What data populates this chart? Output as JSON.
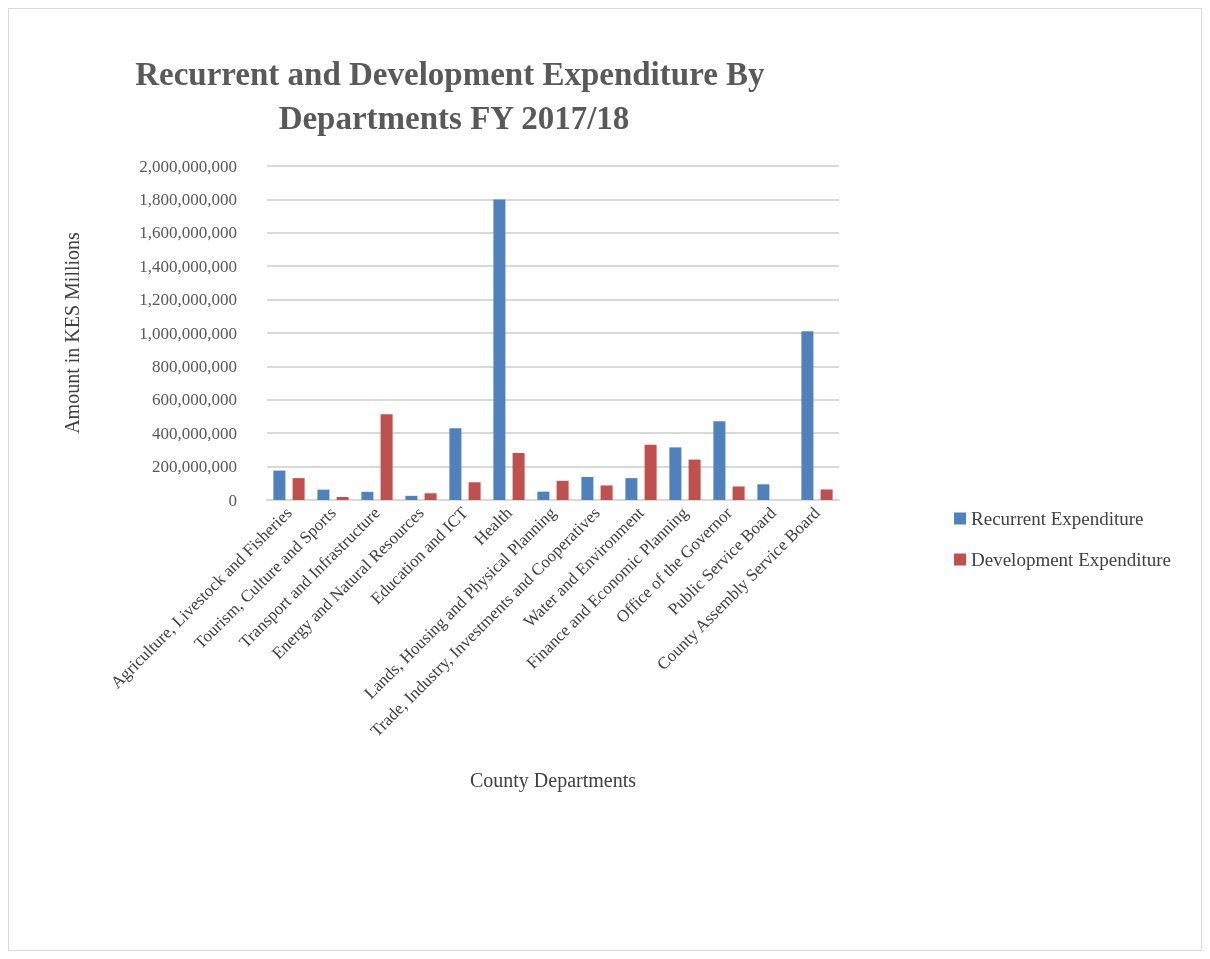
{
  "chart_data": {
    "type": "bar",
    "title": "Recurrent and Development Expenditure By Departments FY 2017/18",
    "xlabel": "County Departments",
    "ylabel": "Amount in KES Millions",
    "categories": [
      "Agriculture, Livestock and Fisheries",
      "Tourism, Culture and Sports",
      "Transport and Infrastructure",
      "Energy and Natural Resources",
      "Education and ICT",
      "Health",
      "Lands, Housing and Physical Planning",
      "Trade, Industry, Investments and Cooperatives",
      "Water and Environment",
      "Finance and Economic Planning",
      "Office of the Governor",
      "Public Service Board",
      "County Assembly Service Board"
    ],
    "series": [
      {
        "name": "Recurrent Expenditure",
        "color": "#4f81bd",
        "values": [
          176000000,
          62000000,
          49000000,
          25000000,
          430000000,
          1800000000,
          50000000,
          138000000,
          131000000,
          315000000,
          471000000,
          94000000,
          1010000000
        ]
      },
      {
        "name": "Development Expenditure",
        "color": "#c0504d",
        "values": [
          131000000,
          18000000,
          514000000,
          40000000,
          106000000,
          282000000,
          115000000,
          87000000,
          331000000,
          242000000,
          81000000,
          0,
          63000000
        ]
      }
    ],
    "ylim": [
      0,
      2000000000
    ],
    "yticks": [
      0,
      {
        "value": 200000000,
        "label": "200,000,000"
      },
      {
        "value": 400000000,
        "label": "400,000,000"
      },
      {
        "value": 600000000,
        "label": "600,000,000"
      },
      {
        "value": 800000000,
        "label": "800,000,000"
      },
      {
        "value": 1000000000,
        "label": "1,000,000,000"
      },
      {
        "value": 1200000000,
        "label": "1,200,000,000"
      },
      {
        "value": 1400000000,
        "label": "1,400,000,000"
      },
      {
        "value": 1600000000,
        "label": "1,600,000,000"
      },
      {
        "value": 1800000000,
        "label": "1,800,000,000"
      },
      {
        "value": 2000000000,
        "label": "2,000,000,000"
      }
    ],
    "grid": "y",
    "legend": "right"
  }
}
